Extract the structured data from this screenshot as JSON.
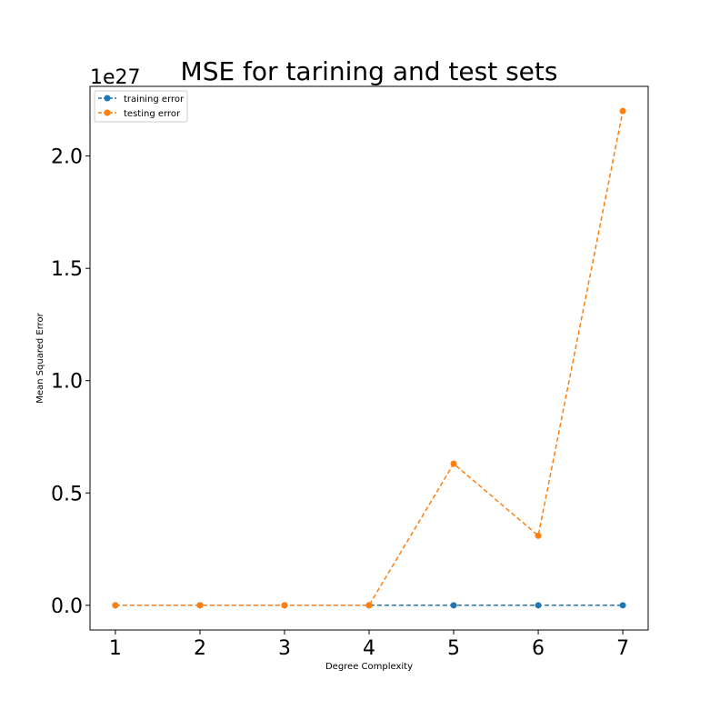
{
  "chart_data": {
    "type": "line",
    "title": "MSE for tarining and test sets",
    "xlabel": "Degree Complexity",
    "ylabel": "Mean Squared Error",
    "y_offset_label": "1e27",
    "x": [
      1,
      2,
      3,
      4,
      5,
      6,
      7
    ],
    "xlim": [
      0.7,
      7.3
    ],
    "ylim": [
      -0.11,
      2.31
    ],
    "x_ticks": [
      1,
      2,
      3,
      4,
      5,
      6,
      7
    ],
    "y_ticks": [
      0.0,
      0.5,
      1.0,
      1.5,
      2.0
    ],
    "y_tick_labels": [
      "0.0",
      "0.5",
      "1.0",
      "1.5",
      "2.0"
    ],
    "grid": false,
    "legend_position": "top-left",
    "series": [
      {
        "name": "training error",
        "color": "#1f77b4",
        "style": "dashed",
        "marker": "circle",
        "values": [
          0,
          0,
          0,
          0,
          0,
          0,
          0
        ]
      },
      {
        "name": "testing error",
        "color": "#ff7f0e",
        "style": "dashed",
        "marker": "circle",
        "values": [
          0,
          0,
          0,
          0,
          0.63,
          0.31,
          2.2
        ]
      }
    ]
  }
}
